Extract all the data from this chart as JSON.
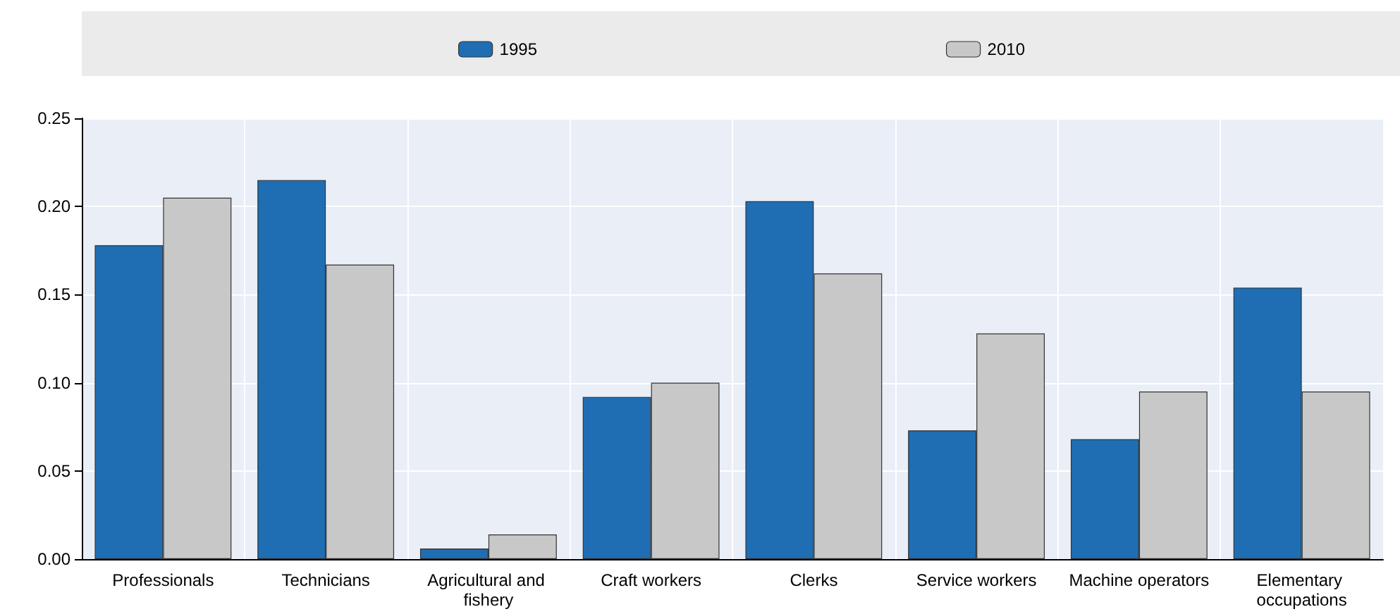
{
  "chart_data": {
    "type": "bar",
    "categories": [
      "Professionals",
      "Technicians",
      "Agricultural and fishery",
      "Craft workers",
      "Clerks",
      "Service workers",
      "Machine operators",
      "Elementary occupations"
    ],
    "series": [
      {
        "name": "1995",
        "color": "#1f6eb4",
        "values": [
          0.178,
          0.215,
          0.006,
          0.092,
          0.203,
          0.073,
          0.068,
          0.154
        ]
      },
      {
        "name": "2010",
        "color": "#c8c8c8",
        "values": [
          0.205,
          0.167,
          0.014,
          0.1,
          0.162,
          0.128,
          0.095,
          0.095
        ]
      }
    ],
    "ylim": [
      0,
      0.25
    ],
    "yticks": [
      {
        "value": 0,
        "label": "0.00"
      },
      {
        "value": 0.05,
        "label": "0.05"
      },
      {
        "value": 0.1,
        "label": "0.10"
      },
      {
        "value": 0.15,
        "label": "0.15"
      },
      {
        "value": 0.2,
        "label": "0.20"
      },
      {
        "value": 0.25,
        "label": "0.25"
      }
    ],
    "grid": true,
    "legend": "top"
  }
}
